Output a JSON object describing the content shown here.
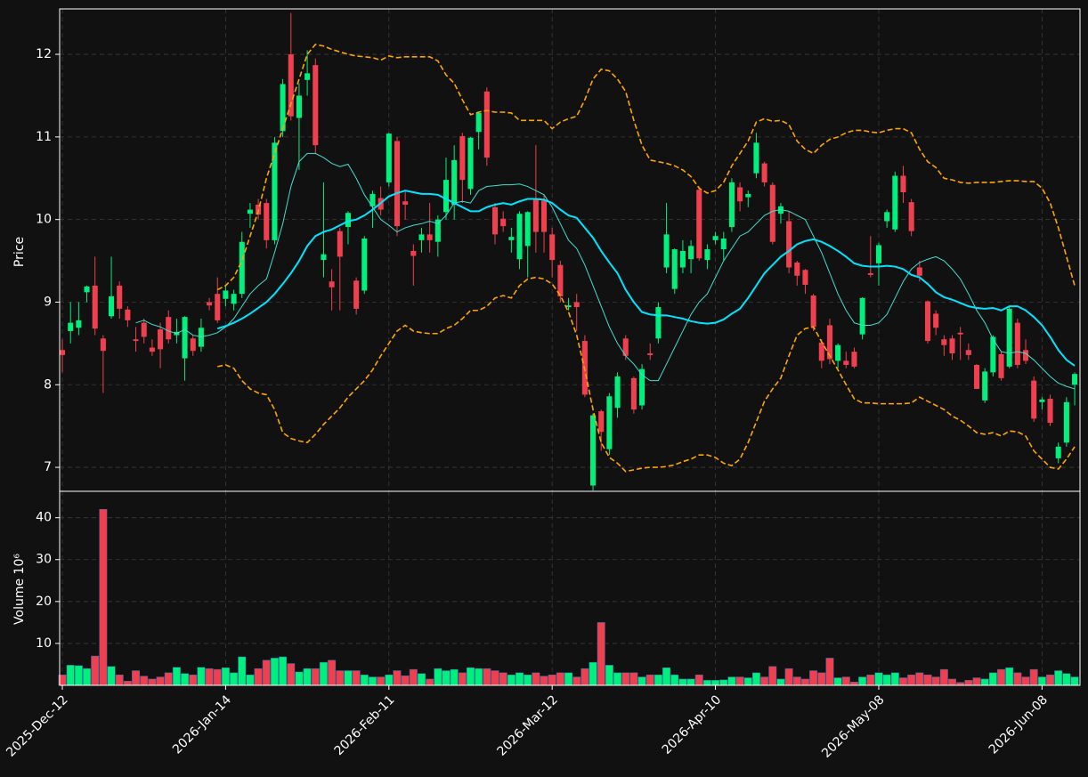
{
  "chart_data": {
    "type": "candlestick",
    "ylabel": "Price",
    "volume_label": "Volume  10⁶",
    "up_color": "#00f07e",
    "down_color": "#f0404f",
    "grid": true,
    "categories": [
      "2025-Dec-12",
      null,
      null,
      null,
      null,
      null,
      null,
      null,
      null,
      null,
      null,
      null,
      null,
      null,
      null,
      null,
      null,
      null,
      null,
      null,
      "2026-Jan-14",
      null,
      null,
      null,
      null,
      null,
      null,
      null,
      null,
      null,
      null,
      null,
      null,
      null,
      null,
      null,
      null,
      null,
      null,
      null,
      "2026-Feb-11",
      null,
      null,
      null,
      null,
      null,
      null,
      null,
      null,
      null,
      null,
      null,
      null,
      null,
      null,
      null,
      null,
      null,
      null,
      null,
      "2026-Mar-12",
      null,
      null,
      null,
      null,
      null,
      null,
      null,
      null,
      null,
      null,
      null,
      null,
      null,
      null,
      null,
      null,
      null,
      null,
      null,
      "2026-Apr-10",
      null,
      null,
      null,
      null,
      null,
      null,
      null,
      null,
      null,
      null,
      null,
      null,
      null,
      null,
      null,
      null,
      null,
      null,
      null,
      "2026-May-08",
      null,
      null,
      null,
      null,
      null,
      null,
      null,
      null,
      null,
      null,
      null,
      null,
      null,
      null,
      null,
      null,
      null,
      null,
      null,
      "2026-Jun-08",
      null,
      null,
      null,
      null
    ],
    "xlim": [
      -0.33,
      124.65
    ],
    "open": [
      8.42,
      8.65,
      8.69,
      9.12,
      9.2,
      8.56,
      8.83,
      9.2,
      8.91,
      8.55,
      8.75,
      8.45,
      8.67,
      8.82,
      8.6,
      8.32,
      8.56,
      8.46,
      9.0,
      9.1,
      9.04,
      8.98,
      9.1,
      10.07,
      10.18,
      10.2,
      9.75,
      11.07,
      12.0,
      11.23,
      11.69,
      11.87,
      9.51,
      9.25,
      9.86,
      9.91,
      9.26,
      9.14,
      10.16,
      10.26,
      10.45,
      10.95,
      10.22,
      9.62,
      9.75,
      9.82,
      9.73,
      10.09,
      10.18,
      11.01,
      10.37,
      11.06,
      11.55,
      10.15,
      10.01,
      9.75,
      9.52,
      9.68,
      10.24,
      10.23,
      9.82,
      9.45,
      8.94,
      9.0,
      8.53,
      6.78,
      7.68,
      7.22,
      7.72,
      8.56,
      8.08,
      7.75,
      8.38,
      8.56,
      9.42,
      9.16,
      9.42,
      9.52,
      10.36,
      9.51,
      9.75,
      9.64,
      9.91,
      10.39,
      10.27,
      10.56,
      10.68,
      10.42,
      10.07,
      9.98,
      9.48,
      9.39,
      9.08,
      8.51,
      8.72,
      8.29,
      8.29,
      8.4,
      8.61,
      9.35,
      9.47,
      9.98,
      9.88,
      10.53,
      10.21,
      9.42,
      9.01,
      8.86,
      8.55,
      8.56,
      8.63,
      8.42,
      8.24,
      7.81,
      8.15,
      8.37,
      8.22,
      8.75,
      8.42,
      8.05,
      7.79,
      7.83,
      7.11,
      7.3,
      8.0
    ],
    "high": [
      8.55,
      9.0,
      9.0,
      9.2,
      9.55,
      8.6,
      9.55,
      9.25,
      8.95,
      8.7,
      8.8,
      8.55,
      8.75,
      8.9,
      8.8,
      8.83,
      8.6,
      8.8,
      9.05,
      9.3,
      9.2,
      9.15,
      9.85,
      10.2,
      10.25,
      10.25,
      11.0,
      11.7,
      12.5,
      11.65,
      12.05,
      11.95,
      10.45,
      9.4,
      9.9,
      10.1,
      9.3,
      9.8,
      10.35,
      10.4,
      11.05,
      11.0,
      10.35,
      9.7,
      9.9,
      10.2,
      10.05,
      10.75,
      10.9,
      11.05,
      11.0,
      11.3,
      11.6,
      10.2,
      10.1,
      9.9,
      10.1,
      10.1,
      10.9,
      10.3,
      9.9,
      9.5,
      9.05,
      9.1,
      8.6,
      7.65,
      7.7,
      7.9,
      8.15,
      8.6,
      8.1,
      8.25,
      8.5,
      9.0,
      10.2,
      9.65,
      9.75,
      9.75,
      10.4,
      9.7,
      9.85,
      9.85,
      10.5,
      10.45,
      10.35,
      11.05,
      10.7,
      10.45,
      10.2,
      10.1,
      9.5,
      9.4,
      9.1,
      8.55,
      8.8,
      8.5,
      8.4,
      8.45,
      9.06,
      9.8,
      9.72,
      10.12,
      10.58,
      10.65,
      10.25,
      9.5,
      9.02,
      8.9,
      8.6,
      8.6,
      8.7,
      8.5,
      8.25,
      8.2,
      8.6,
      8.4,
      8.95,
      8.8,
      8.55,
      8.1,
      7.85,
      7.88,
      7.3,
      7.85,
      8.15
    ],
    "low": [
      8.15,
      8.5,
      8.6,
      9.0,
      8.6,
      7.9,
      8.8,
      8.8,
      8.7,
      8.4,
      8.5,
      8.35,
      8.2,
      8.5,
      8.5,
      8.05,
      8.35,
      8.4,
      8.9,
      8.75,
      8.95,
      8.9,
      9.05,
      9.9,
      10.0,
      9.65,
      9.7,
      11.0,
      11.2,
      10.6,
      11.5,
      10.8,
      9.3,
      8.9,
      8.9,
      9.7,
      8.85,
      9.1,
      9.9,
      10.05,
      10.4,
      9.8,
      10.0,
      9.2,
      9.6,
      9.6,
      9.55,
      10.0,
      10.0,
      10.2,
      10.3,
      10.85,
      10.65,
      9.7,
      9.85,
      9.6,
      9.4,
      9.3,
      9.6,
      9.6,
      9.3,
      9.0,
      8.9,
      8.65,
      7.85,
      6.72,
      7.2,
      7.15,
      7.6,
      8.3,
      7.65,
      7.7,
      8.3,
      8.5,
      9.35,
      9.1,
      9.35,
      9.35,
      9.5,
      9.4,
      9.7,
      9.5,
      9.85,
      10.1,
      10.15,
      10.5,
      10.4,
      9.7,
      9.95,
      9.35,
      9.2,
      9.1,
      8.65,
      8.2,
      8.25,
      8.2,
      8.2,
      8.2,
      8.55,
      9.3,
      9.2,
      9.9,
      9.85,
      10.2,
      9.8,
      9.25,
      8.5,
      8.6,
      8.35,
      8.3,
      8.3,
      8.3,
      7.95,
      7.78,
      8.1,
      8.05,
      8.2,
      8.2,
      8.25,
      7.55,
      7.7,
      7.5,
      7.05,
      7.25,
      7.75
    ],
    "close": [
      8.36,
      8.75,
      8.78,
      9.19,
      8.68,
      8.41,
      9.07,
      8.92,
      8.78,
      8.53,
      8.58,
      8.4,
      8.43,
      8.55,
      8.64,
      8.82,
      8.41,
      8.69,
      8.96,
      8.78,
      9.14,
      9.1,
      9.73,
      10.12,
      10.06,
      9.75,
      10.93,
      11.64,
      11.25,
      11.5,
      11.77,
      10.9,
      9.58,
      9.18,
      9.55,
      10.08,
      8.92,
      9.77,
      10.31,
      10.12,
      11.04,
      9.92,
      10.18,
      9.56,
      9.82,
      9.75,
      10.0,
      10.48,
      10.72,
      10.48,
      10.99,
      11.29,
      10.75,
      9.82,
      9.92,
      9.79,
      10.07,
      10.09,
      9.85,
      9.85,
      9.51,
      9.07,
      8.96,
      8.94,
      7.88,
      7.63,
      7.43,
      7.86,
      8.1,
      8.35,
      7.7,
      8.19,
      8.36,
      8.94,
      9.82,
      9.64,
      9.62,
      9.68,
      9.53,
      9.64,
      9.8,
      9.77,
      10.45,
      10.22,
      10.31,
      10.93,
      10.45,
      9.73,
      10.16,
      9.42,
      9.32,
      9.21,
      8.7,
      8.29,
      8.31,
      8.48,
      8.24,
      8.22,
      9.05,
      9.33,
      9.69,
      10.09,
      10.53,
      10.33,
      9.86,
      9.32,
      8.53,
      8.69,
      8.48,
      8.38,
      8.61,
      8.36,
      7.95,
      8.16,
      8.58,
      8.08,
      8.92,
      8.24,
      8.29,
      7.59,
      7.82,
      7.54,
      7.25,
      7.79,
      8.13
    ],
    "volume": [
      2.5,
      4.8,
      4.7,
      4.0,
      7,
      42,
      4.5,
      2.5,
      1,
      3.5,
      2.2,
      1.5,
      2.0,
      3.0,
      4.3,
      2.8,
      2.5,
      4.3,
      4,
      3.8,
      4.2,
      3,
      6.8,
      2.5,
      4.0,
      6,
      6.5,
      6.8,
      5.2,
      3.2,
      4,
      4,
      5.5,
      6,
      3.5,
      3.5,
      3.5,
      2.5,
      2.0,
      2,
      2.5,
      3.5,
      2.3,
      3.8,
      2.8,
      1.5,
      4,
      3.5,
      3.8,
      3,
      4.2,
      4,
      4,
      3.5,
      3,
      2.5,
      3,
      2.5,
      3,
      2.2,
      2.5,
      3,
      3,
      2,
      4,
      5.5,
      15,
      4.8,
      3,
      3,
      3,
      2,
      2.5,
      2.5,
      4.2,
      2.5,
      1.5,
      1.5,
      2.5,
      1.2,
      1.2,
      1.3,
      2,
      2,
      1.8,
      3,
      2,
      4.5,
      1.5,
      4,
      2,
      1.5,
      3.5,
      3,
      6.5,
      1.8,
      2,
      0.8,
      2,
      2.5,
      3,
      2.5,
      3,
      1.8,
      2.5,
      3,
      2.5,
      2,
      3.8,
      1.5,
      0.7,
      1.2,
      1.8,
      1.5,
      3,
      3.8,
      4.2,
      3,
      2,
      3.8,
      2,
      2.5,
      3.5,
      2.8,
      2
    ],
    "ylim": [
      6.71,
      12.55
    ],
    "yticks": [
      7,
      8,
      9,
      10,
      11,
      12
    ],
    "volume_ylim": [
      0,
      46.3
    ],
    "volume_yticks": [
      10,
      20,
      30,
      40
    ],
    "lines": [
      {
        "color": "#40e0d0",
        "style": "thin",
        "values": [
          null,
          null,
          null,
          null,
          null,
          null,
          null,
          null,
          null,
          8.75,
          8.78,
          8.73,
          8.7,
          8.65,
          8.62,
          8.67,
          8.6,
          8.58,
          8.6,
          8.63,
          8.7,
          8.8,
          8.95,
          9.1,
          9.2,
          9.28,
          9.6,
          9.95,
          10.4,
          10.7,
          10.8,
          10.8,
          10.75,
          10.68,
          10.64,
          10.67,
          10.5,
          10.3,
          10.15,
          10.0,
          9.93,
          9.85,
          9.9,
          9.93,
          9.95,
          9.98,
          9.95,
          10.05,
          10.2,
          10.22,
          10.2,
          10.35,
          10.4,
          10.41,
          10.42,
          10.42,
          10.43,
          10.4,
          10.35,
          10.3,
          10.15,
          9.95,
          9.75,
          9.65,
          9.45,
          9.2,
          8.95,
          8.7,
          8.5,
          8.35,
          8.25,
          8.12,
          8.05,
          8.05,
          8.25,
          8.45,
          8.65,
          8.85,
          9.0,
          9.1,
          9.3,
          9.5,
          9.65,
          9.8,
          9.85,
          9.95,
          10.05,
          10.1,
          10.12,
          10.1,
          10.05,
          10.0,
          9.8,
          9.6,
          9.35,
          9.1,
          8.9,
          8.75,
          8.72,
          8.72,
          8.75,
          8.85,
          9.05,
          9.25,
          9.4,
          9.48,
          9.52,
          9.55,
          9.5,
          9.4,
          9.28,
          9.1,
          8.9,
          8.75,
          8.55,
          8.4,
          8.38,
          8.4,
          8.38,
          8.3,
          8.2,
          8.1,
          8.02,
          7.98,
          7.95
        ]
      },
      {
        "color": "#00e5ff",
        "style": "thick",
        "values": [
          null,
          null,
          null,
          null,
          null,
          null,
          null,
          null,
          null,
          null,
          null,
          null,
          null,
          null,
          null,
          null,
          null,
          null,
          null,
          8.68,
          8.71,
          8.75,
          8.8,
          8.86,
          8.93,
          9.0,
          9.1,
          9.22,
          9.35,
          9.5,
          9.68,
          9.8,
          9.85,
          9.88,
          9.93,
          9.98,
          10.0,
          10.05,
          10.12,
          10.2,
          10.28,
          10.32,
          10.35,
          10.33,
          10.31,
          10.31,
          10.3,
          10.25,
          10.2,
          10.15,
          10.1,
          10.1,
          10.15,
          10.18,
          10.2,
          10.18,
          10.22,
          10.25,
          10.25,
          10.24,
          10.2,
          10.12,
          10.05,
          10.02,
          9.9,
          9.78,
          9.62,
          9.48,
          9.35,
          9.15,
          9.0,
          8.88,
          8.85,
          8.84,
          8.84,
          8.82,
          8.8,
          8.77,
          8.75,
          8.74,
          8.75,
          8.79,
          8.86,
          8.92,
          9.05,
          9.2,
          9.35,
          9.45,
          9.55,
          9.62,
          9.7,
          9.74,
          9.76,
          9.73,
          9.68,
          9.62,
          9.55,
          9.47,
          9.44,
          9.43,
          9.43,
          9.44,
          9.43,
          9.4,
          9.33,
          9.3,
          9.22,
          9.12,
          9.06,
          9.03,
          8.99,
          8.95,
          8.93,
          8.92,
          8.93,
          8.9,
          8.95,
          8.95,
          8.9,
          8.82,
          8.72,
          8.58,
          8.42,
          8.3,
          8.23
        ]
      },
      {
        "color": "#ffa500",
        "style": "dashed",
        "values": [
          null,
          null,
          null,
          null,
          null,
          null,
          null,
          null,
          null,
          null,
          null,
          null,
          null,
          null,
          null,
          null,
          null,
          null,
          null,
          9.15,
          9.2,
          9.3,
          9.5,
          9.8,
          10.1,
          10.5,
          10.8,
          11.1,
          11.4,
          11.7,
          12.0,
          12.12,
          12.1,
          12.06,
          12.03,
          12.0,
          11.98,
          11.97,
          11.96,
          11.93,
          11.98,
          11.96,
          11.97,
          11.97,
          11.97,
          11.97,
          11.92,
          11.75,
          11.65,
          11.45,
          11.27,
          11.3,
          11.32,
          11.3,
          11.3,
          11.29,
          11.2,
          11.2,
          11.2,
          11.2,
          11.1,
          11.18,
          11.22,
          11.25,
          11.45,
          11.7,
          11.82,
          11.8,
          11.7,
          11.55,
          11.2,
          10.9,
          10.72,
          10.7,
          10.68,
          10.65,
          10.6,
          10.52,
          10.38,
          10.32,
          10.35,
          10.45,
          10.65,
          10.8,
          10.95,
          11.18,
          11.22,
          11.19,
          11.2,
          11.15,
          10.95,
          10.85,
          10.8,
          10.9,
          10.97,
          11.0,
          11.05,
          11.08,
          11.08,
          11.06,
          11.05,
          11.08,
          11.1,
          11.1,
          11.05,
          10.85,
          10.7,
          10.63,
          10.5,
          10.48,
          10.45,
          10.44,
          10.45,
          10.45,
          10.45,
          10.46,
          10.47,
          10.47,
          10.46,
          10.46,
          10.38,
          10.2,
          9.9,
          9.55,
          9.2
        ]
      },
      {
        "color": "#ffa500",
        "style": "dashed",
        "values": [
          null,
          null,
          null,
          null,
          null,
          null,
          null,
          null,
          null,
          null,
          null,
          null,
          null,
          null,
          null,
          null,
          null,
          null,
          null,
          8.22,
          8.24,
          8.2,
          8.05,
          7.95,
          7.9,
          7.88,
          7.7,
          7.42,
          7.35,
          7.32,
          7.3,
          7.4,
          7.52,
          7.62,
          7.72,
          7.85,
          7.95,
          8.05,
          8.18,
          8.35,
          8.5,
          8.65,
          8.72,
          8.65,
          8.63,
          8.62,
          8.62,
          8.68,
          8.72,
          8.8,
          8.9,
          8.9,
          8.95,
          9.05,
          9.08,
          9.05,
          9.2,
          9.28,
          9.3,
          9.28,
          9.22,
          9.08,
          8.88,
          8.6,
          8.18,
          7.7,
          7.3,
          7.12,
          7.05,
          6.95,
          6.97,
          6.99,
          7.0,
          7.0,
          7.01,
          7.03,
          7.07,
          7.1,
          7.15,
          7.15,
          7.12,
          7.05,
          7.02,
          7.1,
          7.3,
          7.55,
          7.8,
          7.95,
          8.08,
          8.35,
          8.6,
          8.68,
          8.7,
          8.52,
          8.35,
          8.18,
          8.0,
          7.83,
          7.78,
          7.78,
          7.77,
          7.77,
          7.77,
          7.77,
          7.78,
          7.85,
          7.8,
          7.75,
          7.7,
          7.62,
          7.57,
          7.5,
          7.42,
          7.4,
          7.42,
          7.38,
          7.44,
          7.43,
          7.38,
          7.2,
          7.1,
          7.0,
          6.98,
          7.1,
          7.25
        ]
      }
    ]
  }
}
